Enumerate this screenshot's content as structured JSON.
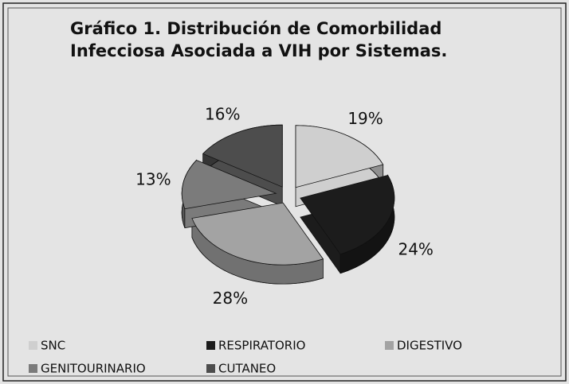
{
  "chart_data": {
    "type": "pie",
    "title": "Gráfico 1. Distribución de Comorbilidad Infecciosa Asociada a VIH por Sistemas.",
    "categories": [
      "SNC",
      "RESPIRATORIO",
      "DIGESTIVO",
      "GENITOURINARIO",
      "CUTANEO"
    ],
    "values": [
      19,
      24,
      28,
      13,
      16
    ],
    "value_labels": [
      "19%",
      "24%",
      "28%",
      "13%",
      "16%"
    ],
    "colors": [
      "#cfcfcf",
      "#1c1c1c",
      "#a3a3a3",
      "#7b7b7b",
      "#4d4d4d"
    ],
    "legend": "bottom"
  }
}
